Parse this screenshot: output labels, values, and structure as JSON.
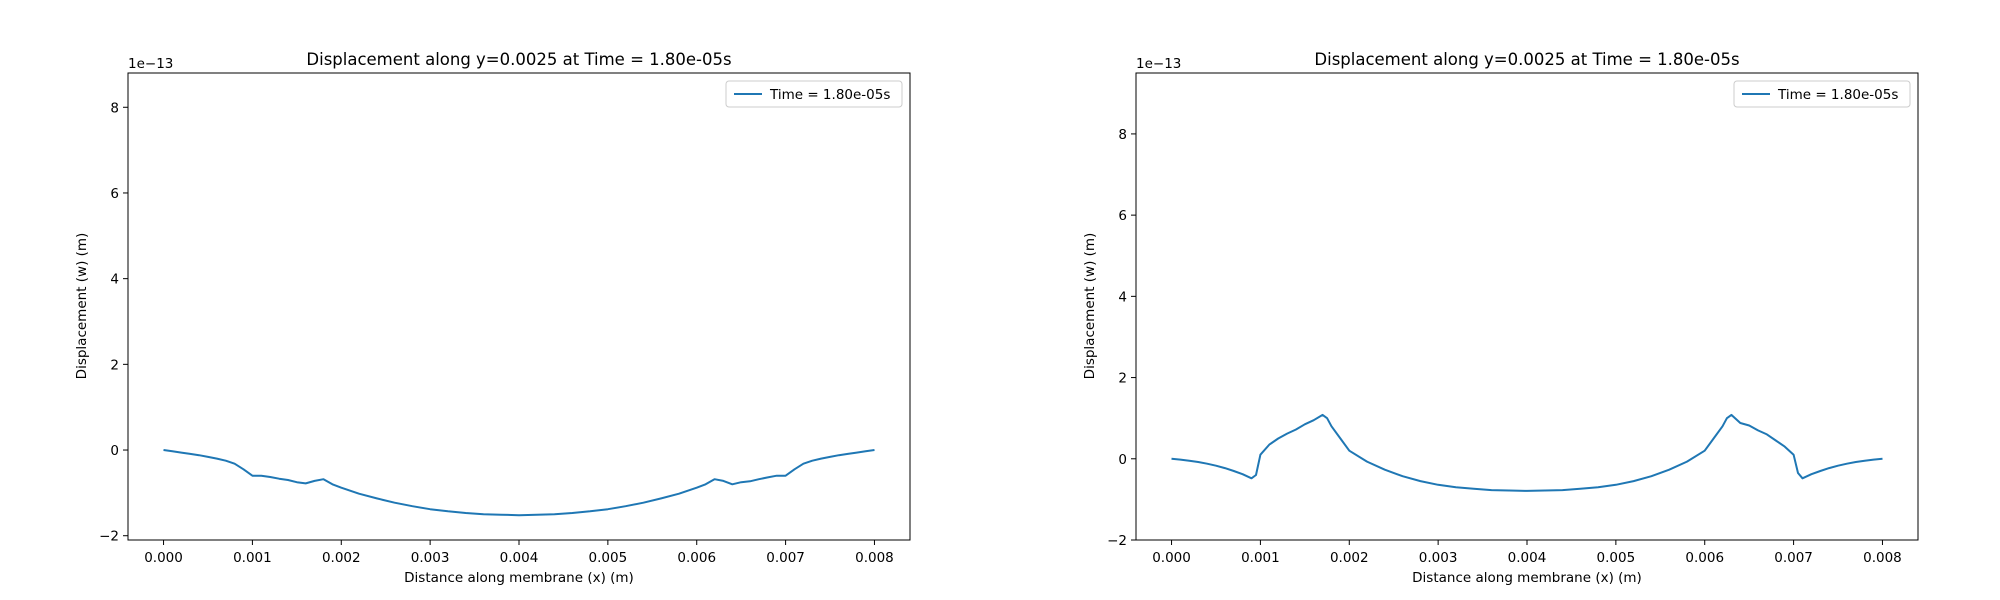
{
  "chart_data": [
    {
      "type": "line",
      "title": "Displacement along y=0.0025 at Time = 1.80e-05s",
      "xlabel": "Distance along membrane (x) (m)",
      "ylabel": "Displacement (w) (m)",
      "offset_text": "1e−13",
      "xlim": [
        -0.0004,
        0.0084
      ],
      "ylim": [
        -2.1,
        8.8
      ],
      "xticks": [
        0.0,
        0.001,
        0.002,
        0.003,
        0.004,
        0.005,
        0.006,
        0.007,
        0.008
      ],
      "xtick_labels": [
        "0.000",
        "0.001",
        "0.002",
        "0.003",
        "0.004",
        "0.005",
        "0.006",
        "0.007",
        "0.008"
      ],
      "yticks": [
        -2,
        0,
        2,
        4,
        6,
        8
      ],
      "ytick_labels": [
        "−2",
        "0",
        "2",
        "4",
        "6",
        "8"
      ],
      "legend": "top-right",
      "grid": false,
      "series": [
        {
          "name": "Time = 1.80e-05s",
          "color": "#1f77b4",
          "x": [
            0.0,
            0.0001,
            0.0002,
            0.0003,
            0.0004,
            0.0005,
            0.0006,
            0.0007,
            0.0008,
            0.0009,
            0.001,
            0.0011,
            0.0012,
            0.0013,
            0.0014,
            0.0015,
            0.0016,
            0.0017,
            0.0018,
            0.0019,
            0.002,
            0.0022,
            0.0024,
            0.0026,
            0.0028,
            0.003,
            0.0032,
            0.0034,
            0.0036,
            0.0038,
            0.004,
            0.0042,
            0.0044,
            0.0046,
            0.0048,
            0.005,
            0.0052,
            0.0054,
            0.0056,
            0.0058,
            0.006,
            0.0061,
            0.0062,
            0.0063,
            0.0064,
            0.0065,
            0.0066,
            0.0067,
            0.0068,
            0.0069,
            0.007,
            0.0071,
            0.0072,
            0.0073,
            0.0074,
            0.0075,
            0.0076,
            0.0077,
            0.0078,
            0.0079,
            0.008
          ],
          "y": [
            0.0,
            -0.03,
            -0.06,
            -0.09,
            -0.12,
            -0.16,
            -0.2,
            -0.25,
            -0.32,
            -0.45,
            -0.6,
            -0.6,
            -0.63,
            -0.67,
            -0.7,
            -0.75,
            -0.78,
            -0.72,
            -0.68,
            -0.8,
            -0.88,
            -1.02,
            -1.13,
            -1.23,
            -1.31,
            -1.38,
            -1.43,
            -1.47,
            -1.5,
            -1.51,
            -1.52,
            -1.51,
            -1.5,
            -1.47,
            -1.43,
            -1.38,
            -1.31,
            -1.23,
            -1.13,
            -1.02,
            -0.88,
            -0.8,
            -0.68,
            -0.72,
            -0.8,
            -0.75,
            -0.73,
            -0.68,
            -0.64,
            -0.6,
            -0.6,
            -0.45,
            -0.32,
            -0.25,
            -0.2,
            -0.16,
            -0.12,
            -0.09,
            -0.06,
            -0.03,
            0.0
          ]
        }
      ]
    },
    {
      "type": "line",
      "title": "Displacement along y=0.0025 at Time = 1.80e-05s",
      "xlabel": "Distance along membrane (x) (m)",
      "ylabel": "Displacement (w) (m)",
      "offset_text": "1e−13",
      "xlim": [
        -0.0004,
        0.0084
      ],
      "ylim": [
        -2.0,
        9.5
      ],
      "xticks": [
        0.0,
        0.001,
        0.002,
        0.003,
        0.004,
        0.005,
        0.006,
        0.007,
        0.008
      ],
      "xtick_labels": [
        "0.000",
        "0.001",
        "0.002",
        "0.003",
        "0.004",
        "0.005",
        "0.006",
        "0.007",
        "0.008"
      ],
      "yticks": [
        -2,
        0,
        2,
        4,
        6,
        8
      ],
      "ytick_labels": [
        "−2",
        "0",
        "2",
        "4",
        "6",
        "8"
      ],
      "legend": "top-right",
      "grid": false,
      "series": [
        {
          "name": "Time = 1.80e-05s",
          "color": "#1f77b4",
          "x": [
            0.0,
            0.0001,
            0.0002,
            0.0003,
            0.0004,
            0.0005,
            0.0006,
            0.0007,
            0.0008,
            0.0009,
            0.00095,
            0.001,
            0.0011,
            0.0012,
            0.0013,
            0.0014,
            0.0015,
            0.0016,
            0.0017,
            0.00175,
            0.0018,
            0.0019,
            0.002,
            0.0022,
            0.0024,
            0.0026,
            0.0028,
            0.003,
            0.0032,
            0.0034,
            0.0036,
            0.0038,
            0.004,
            0.0042,
            0.0044,
            0.0046,
            0.0048,
            0.005,
            0.0052,
            0.0054,
            0.0056,
            0.0058,
            0.006,
            0.0061,
            0.0062,
            0.00625,
            0.0063,
            0.0064,
            0.0065,
            0.0066,
            0.0067,
            0.0068,
            0.0069,
            0.007,
            0.00705,
            0.0071,
            0.0072,
            0.0073,
            0.0074,
            0.0075,
            0.0076,
            0.0077,
            0.0078,
            0.0079,
            0.008
          ],
          "y": [
            0.0,
            -0.02,
            -0.05,
            -0.08,
            -0.12,
            -0.17,
            -0.23,
            -0.3,
            -0.38,
            -0.48,
            -0.4,
            0.1,
            0.35,
            0.5,
            0.62,
            0.72,
            0.85,
            0.95,
            1.08,
            1.0,
            0.8,
            0.5,
            0.2,
            -0.07,
            -0.27,
            -0.43,
            -0.55,
            -0.64,
            -0.7,
            -0.74,
            -0.77,
            -0.78,
            -0.79,
            -0.78,
            -0.77,
            -0.74,
            -0.7,
            -0.64,
            -0.55,
            -0.43,
            -0.27,
            -0.07,
            0.2,
            0.5,
            0.8,
            1.0,
            1.08,
            0.88,
            0.82,
            0.7,
            0.6,
            0.45,
            0.3,
            0.1,
            -0.35,
            -0.48,
            -0.38,
            -0.3,
            -0.23,
            -0.17,
            -0.12,
            -0.08,
            -0.05,
            -0.02,
            0.0
          ]
        }
      ]
    }
  ]
}
